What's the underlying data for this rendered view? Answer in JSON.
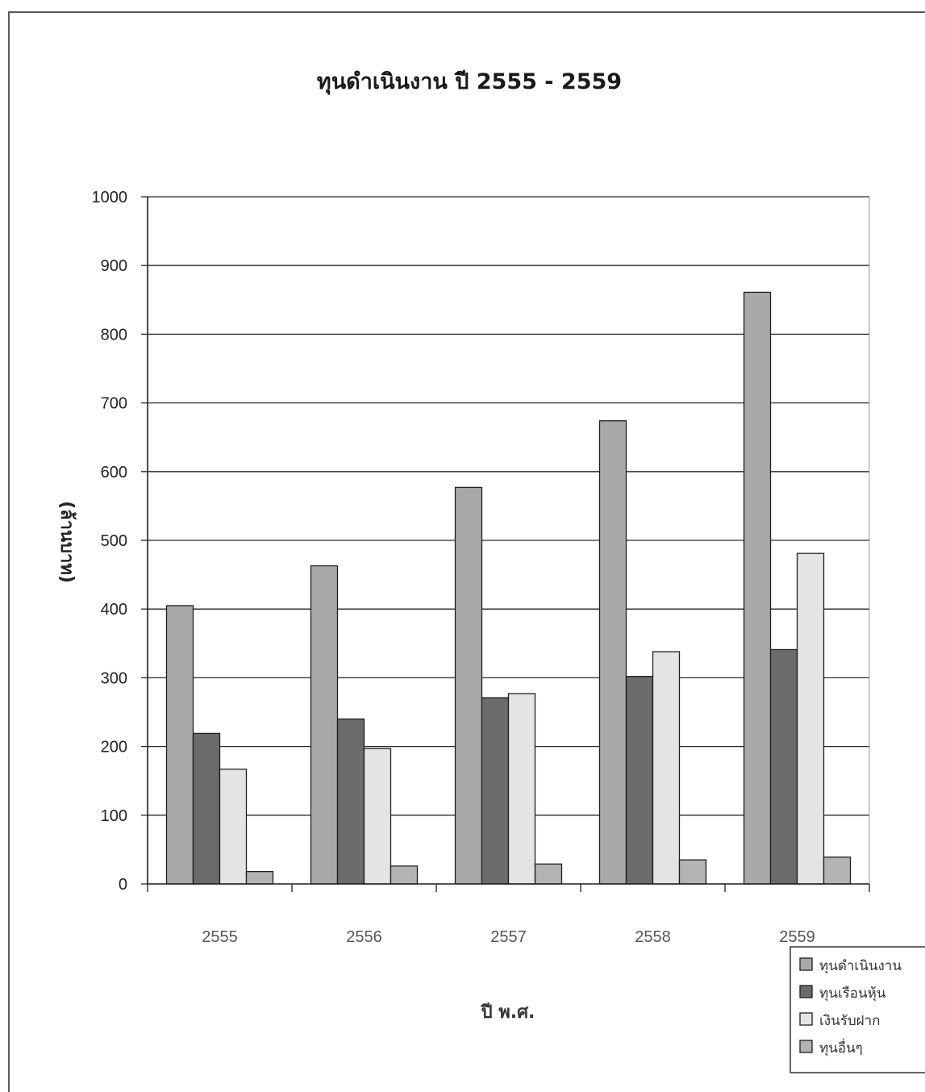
{
  "chart_data": {
    "type": "bar",
    "title": "ทุนดำเนินงาน ปี  2555 - 2559",
    "xlabel": "ปี พ.ศ.",
    "ylabel": "(ล้านบาท)",
    "categories": [
      "2555",
      "2556",
      "2557",
      "2558",
      "2559"
    ],
    "ylim": [
      0,
      1000
    ],
    "yticks": [
      0,
      100,
      200,
      300,
      400,
      500,
      600,
      700,
      800,
      900,
      1000
    ],
    "grid": true,
    "legend_position": "bottom-right",
    "series": [
      {
        "name": "ทุนดำเนินงาน",
        "values": [
          405,
          463,
          577,
          674,
          861
        ],
        "color": "#a9a9a9"
      },
      {
        "name": "ทุนเรือนหุ้น",
        "values": [
          219,
          240,
          271,
          302,
          341
        ],
        "color": "#6b6b6b"
      },
      {
        "name": "เงินรับฝาก",
        "values": [
          167,
          197,
          277,
          338,
          481
        ],
        "color": "#e4e4e4"
      },
      {
        "name": "ทุนอื่นๆ",
        "values": [
          18,
          26,
          29,
          35,
          39
        ],
        "color": "#b3b3b3"
      }
    ]
  }
}
